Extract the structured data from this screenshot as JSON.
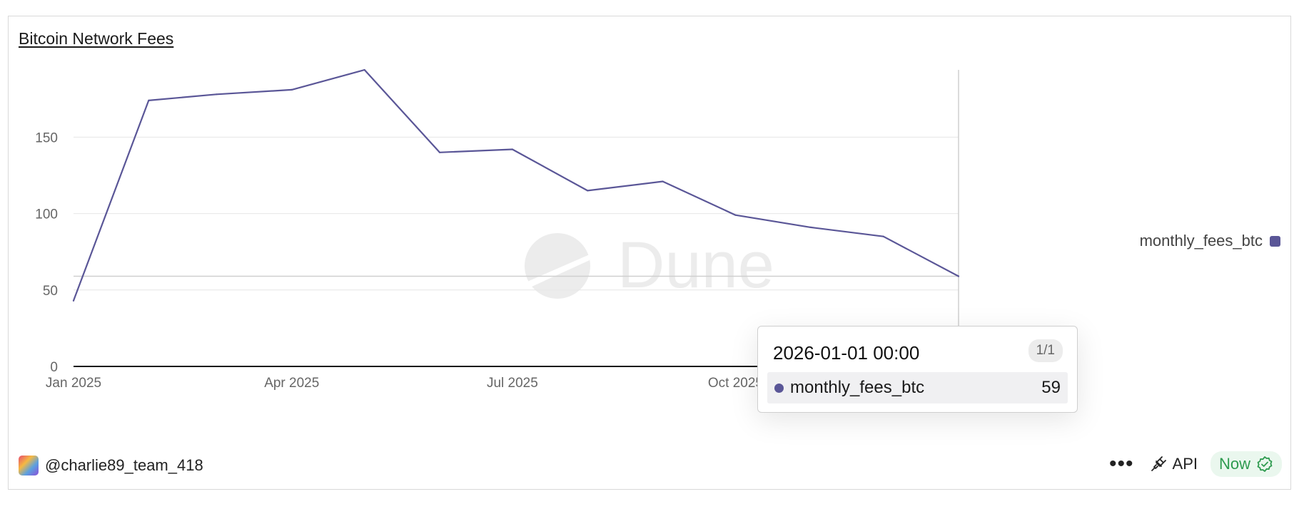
{
  "title": "Bitcoin Network Fees",
  "colors": {
    "series": "#5a5697",
    "grid": "#e6e6e6",
    "axis": "#1a1a1a",
    "tick": "#666666",
    "watermark": "#ececec",
    "now_green": "#2e9b4f"
  },
  "watermark_text": "Dune",
  "chart_data": {
    "type": "line",
    "title": "Bitcoin Network Fees",
    "xlabel": "",
    "ylabel": "",
    "x": [
      "2025-01-01",
      "2025-02-01",
      "2025-03-01",
      "2025-04-01",
      "2025-05-01",
      "2025-06-01",
      "2025-07-01",
      "2025-08-01",
      "2025-09-01",
      "2025-10-01",
      "2025-11-01",
      "2025-12-01",
      "2026-01-01"
    ],
    "x_tick_labels": [
      "Jan 2025",
      "Apr 2025",
      "Jul 2025",
      "Oct 2025",
      "Jan 2026"
    ],
    "x_tick_dates": [
      "2025-01-01",
      "2025-04-01",
      "2025-07-01",
      "2025-10-01",
      "2026-01-01"
    ],
    "series": [
      {
        "name": "monthly_fees_btc",
        "values": [
          43,
          174,
          178,
          181,
          194,
          140,
          142,
          115,
          121,
          99,
          91,
          85,
          59
        ]
      }
    ],
    "y_ticks": [
      0,
      50,
      100,
      150
    ],
    "ylim": [
      0,
      194
    ],
    "grid": true,
    "legend_position": "right"
  },
  "legend": {
    "label": "monthly_fees_btc"
  },
  "tooltip": {
    "title": "2026-01-01 00:00",
    "counter": "1/1",
    "series_label": "monthly_fees_btc",
    "value": "59",
    "crosshair_value": 59
  },
  "footer": {
    "username": "@charlie89_team_418",
    "more_label": "•••",
    "api_label": "API",
    "now_label": "Now"
  }
}
